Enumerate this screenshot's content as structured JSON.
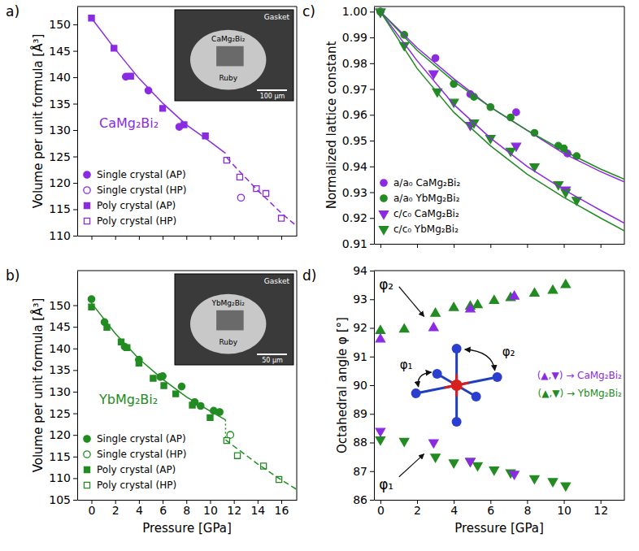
{
  "chart_data": [
    {
      "type": "scatter",
      "panel_label": "a)",
      "y_label": "Volume per unit formula [Å³]",
      "xlim": [
        -1.2,
        17.3
      ],
      "ylim": [
        110,
        153.4
      ],
      "xticks": [
        0,
        2,
        4,
        6,
        8,
        10,
        12,
        14,
        16
      ],
      "yticks": [
        110,
        115,
        120,
        125,
        130,
        135,
        140,
        145,
        150
      ],
      "tick_labels": "y",
      "legend": "lower left",
      "annotations": [
        {
          "text": "CaMg₂Bi₂",
          "color": "#8a2be2"
        }
      ],
      "inset": {
        "labels": [
          "Gasket",
          "CaMg₂Bi₂",
          "Ruby"
        ],
        "scale_bar": "100 µm"
      },
      "series": [
        {
          "name": "Single crystal (AP)",
          "color": "#8a2be2",
          "marker": "circle",
          "x": [
            2.9,
            4.8,
            7.4
          ],
          "y": [
            140.1,
            137.5,
            130.6
          ]
        },
        {
          "name": "Single crystal (HP)",
          "color": "#8a2be2",
          "marker": "circle-open",
          "x": [
            12.6
          ],
          "y": [
            117.2
          ]
        },
        {
          "name": "Poly crystal (AP)",
          "color": "#8a2be2",
          "marker": "square",
          "x": [
            0,
            1.9,
            3.3,
            6.0,
            7.8,
            9.6
          ],
          "y": [
            151.2,
            145.5,
            140.2,
            134.1,
            131.0,
            128.9
          ]
        },
        {
          "name": "Poly crystal (HP)",
          "color": "#8a2be2",
          "marker": "square-open",
          "x": [
            11.4,
            12.5,
            13.9,
            14.7,
            16.0
          ],
          "y": [
            124.3,
            121.1,
            118.9,
            118.0,
            113.3
          ]
        },
        {
          "type": "line",
          "color": "#8a2be2",
          "line_style": "solid",
          "x": [
            0,
            2,
            4,
            6,
            8,
            10,
            11.3
          ],
          "y": [
            151.2,
            145.3,
            139.8,
            135.1,
            131.0,
            127.8,
            125.6
          ]
        },
        {
          "type": "line",
          "color": "#8a2be2",
          "line_style": "dashed",
          "x": [
            11.4,
            12,
            14,
            16,
            17.3
          ],
          "y": [
            124.8,
            123.3,
            118.6,
            114.3,
            111.8
          ]
        }
      ]
    },
    {
      "type": "scatter",
      "panel_label": "b)",
      "x_label": "Pressure [GPa]",
      "y_label": "Volume per unit formula [Å³]",
      "xlim": [
        -1.2,
        17.3
      ],
      "ylim": [
        105,
        158
      ],
      "xticks": [
        0,
        2,
        4,
        6,
        8,
        10,
        12,
        14,
        16
      ],
      "yticks": [
        105,
        110,
        115,
        120,
        125,
        130,
        135,
        140,
        145,
        150
      ],
      "legend": "lower left",
      "annotations": [
        {
          "text": "YbMg₂Bi₂",
          "color": "#228b22"
        }
      ],
      "inset": {
        "labels": [
          "Gasket",
          "YbMg₂Bi₂",
          "Ruby"
        ],
        "scale_bar": "50 µm"
      },
      "series": [
        {
          "name": "Single crystal (AP)",
          "color": "#228b22",
          "marker": "circle",
          "x": [
            0,
            1.1,
            2.8,
            4.0,
            5.8,
            6.0,
            7.6,
            8.7,
            9.2,
            10.3,
            10.8
          ],
          "y": [
            151.4,
            146.1,
            140.4,
            137.4,
            133.4,
            133.6,
            131.2,
            127.6,
            126.7,
            125.6,
            125.3
          ]
        },
        {
          "name": "Single crystal (HP)",
          "color": "#228b22",
          "marker": "circle-open",
          "x": [
            11.7
          ],
          "y": [
            120.0
          ]
        },
        {
          "name": "Poly crystal (AP)",
          "color": "#228b22",
          "marker": "square",
          "x": [
            0,
            1.3,
            2.5,
            3.0,
            4.0,
            5.2,
            6.1,
            7.1,
            8.5,
            10.0
          ],
          "y": [
            149.6,
            144.9,
            141.5,
            140.2,
            136.6,
            133.1,
            131.4,
            129.5,
            126.9,
            124.0
          ]
        },
        {
          "name": "Poly crystal (HP)",
          "color": "#228b22",
          "marker": "square-open",
          "x": [
            11.4,
            12.3,
            14.5,
            15.8
          ],
          "y": [
            118.7,
            115.2,
            112.8,
            109.7
          ]
        },
        {
          "type": "line",
          "color": "#228b22",
          "line_style": "solid",
          "x": [
            0,
            2,
            4,
            6,
            8,
            10,
            11.3
          ],
          "y": [
            150.5,
            143.5,
            137.6,
            132.9,
            128.8,
            125.5,
            123.5
          ]
        },
        {
          "type": "line",
          "color": "#228b22",
          "line_style": "dotted",
          "x": [
            11.3,
            11.3
          ],
          "y": [
            123.5,
            118.9
          ]
        },
        {
          "type": "line",
          "color": "#228b22",
          "line_style": "dashed",
          "x": [
            11.3,
            12,
            14,
            16,
            17.3
          ],
          "y": [
            118.9,
            117.4,
            113.3,
            109.6,
            107.4
          ]
        }
      ]
    },
    {
      "type": "scatter",
      "panel_label": "c)",
      "y_label": "Normalized lattice constant",
      "xlim": [
        -0.35,
        13.3
      ],
      "ylim": [
        0.91,
        1.002
      ],
      "xticks": [
        0,
        2,
        4,
        6,
        8,
        10,
        12
      ],
      "yticks": [
        0.91,
        0.92,
        0.93,
        0.94,
        0.95,
        0.96,
        0.97,
        0.98,
        0.99,
        {
          "value": 1.0,
          "label": "1.00"
        }
      ],
      "tick_labels": "y",
      "legend": "lower left",
      "series": [
        {
          "name": "a/a₀ CaMg₂Bi₂",
          "color": "#8a2be2",
          "marker": "circle",
          "x": [
            0,
            3.0,
            4.9,
            7.4,
            10.2
          ],
          "y": [
            1.0,
            0.982,
            0.968,
            0.961,
            0.945
          ]
        },
        {
          "name": "a/a₀ YbMg₂Bi₂",
          "color": "#228b22",
          "marker": "circle",
          "x": [
            0,
            1.3,
            4.0,
            5.1,
            6.0,
            7.1,
            8.4,
            9.7,
            10.0,
            10.7
          ],
          "y": [
            1.0,
            0.991,
            0.972,
            0.967,
            0.963,
            0.959,
            0.953,
            0.948,
            0.947,
            0.944
          ]
        },
        {
          "name": "c/c₀ CaMg₂Bi₂",
          "color": "#8a2be2",
          "marker": "triangle-down",
          "x": [
            0,
            2.9,
            4.9,
            7.4,
            10.1
          ],
          "y": [
            1.0,
            0.976,
            0.956,
            0.948,
            0.931
          ]
        },
        {
          "name": "c/c₀ YbMg₂Bi₂",
          "color": "#228b22",
          "marker": "triangle-down",
          "x": [
            0,
            1.3,
            3.1,
            4.0,
            5.1,
            6.0,
            7.1,
            8.4,
            9.7,
            10.1,
            10.7
          ],
          "y": [
            1.0,
            0.987,
            0.969,
            0.965,
            0.957,
            0.951,
            0.946,
            0.94,
            0.933,
            0.93,
            0.927
          ]
        },
        {
          "type": "line",
          "color": "#8a2be2",
          "line_style": "solid",
          "x": [
            0,
            2,
            4,
            6,
            8,
            10,
            12,
            13.3
          ],
          "y": [
            1.0,
            0.986,
            0.974,
            0.963,
            0.954,
            0.945,
            0.938,
            0.934
          ]
        },
        {
          "type": "line",
          "color": "#228b22",
          "line_style": "solid",
          "x": [
            0,
            2,
            4,
            6,
            8,
            10,
            12,
            13.3
          ],
          "y": [
            1.0,
            0.985,
            0.973,
            0.963,
            0.954,
            0.946,
            0.939,
            0.935
          ]
        },
        {
          "type": "line",
          "color": "#8a2be2",
          "line_style": "solid",
          "x": [
            0,
            2,
            4,
            6,
            8,
            10,
            12,
            13.3
          ],
          "y": [
            1.0,
            0.981,
            0.964,
            0.951,
            0.94,
            0.931,
            0.923,
            0.918
          ]
        },
        {
          "type": "line",
          "color": "#228b22",
          "line_style": "solid",
          "x": [
            0,
            2,
            4,
            6,
            8,
            10,
            12,
            13.3
          ],
          "y": [
            1.0,
            0.978,
            0.961,
            0.948,
            0.937,
            0.928,
            0.92,
            0.915
          ]
        }
      ]
    },
    {
      "type": "scatter",
      "panel_label": "d)",
      "x_label": "Pressure [GPa]",
      "y_label": "Octahedral angle φ [°]",
      "xlim": [
        -0.35,
        13.3
      ],
      "ylim": [
        86,
        94
      ],
      "xticks": [
        0,
        2,
        4,
        6,
        8,
        10,
        12
      ],
      "yticks": [
        86,
        87,
        88,
        89,
        90,
        91,
        92,
        93,
        94
      ],
      "annotations": [
        {
          "text": "φ₂"
        },
        {
          "text": "φ₁"
        },
        {
          "text": "(▲,▼) → CaMg₂Bi₂",
          "color": "#8a2be2"
        },
        {
          "text": "(▲,▼) → YbMg₂Bi₂",
          "color": "#228b22"
        }
      ],
      "inset": {
        "labels": [
          "φ₁",
          "φ₂"
        ]
      },
      "series": [
        {
          "color": "#228b22",
          "marker": "triangle-up",
          "x": [
            0,
            1.3,
            3.0,
            4.0,
            4.9,
            5.3,
            6.2,
            7.1,
            8.4,
            9.4,
            10.1
          ],
          "y": [
            91.9,
            91.95,
            92.5,
            92.7,
            92.75,
            92.8,
            92.95,
            93.05,
            93.2,
            93.3,
            93.5
          ]
        },
        {
          "color": "#8a2be2",
          "marker": "triangle-up",
          "x": [
            0,
            2.9,
            4.9,
            7.3
          ],
          "y": [
            91.6,
            92.0,
            92.65,
            93.1
          ]
        },
        {
          "color": "#228b22",
          "marker": "triangle-down",
          "x": [
            0,
            1.3,
            3.0,
            4.0,
            4.9,
            5.3,
            6.2,
            7.1,
            8.4,
            9.4,
            10.1
          ],
          "y": [
            88.1,
            88.05,
            87.5,
            87.3,
            87.35,
            87.2,
            87.05,
            86.95,
            86.75,
            86.65,
            86.5
          ]
        },
        {
          "color": "#8a2be2",
          "marker": "triangle-down",
          "x": [
            0,
            2.9,
            4.9,
            7.3
          ],
          "y": [
            88.4,
            88.0,
            87.35,
            86.9
          ]
        }
      ]
    }
  ]
}
